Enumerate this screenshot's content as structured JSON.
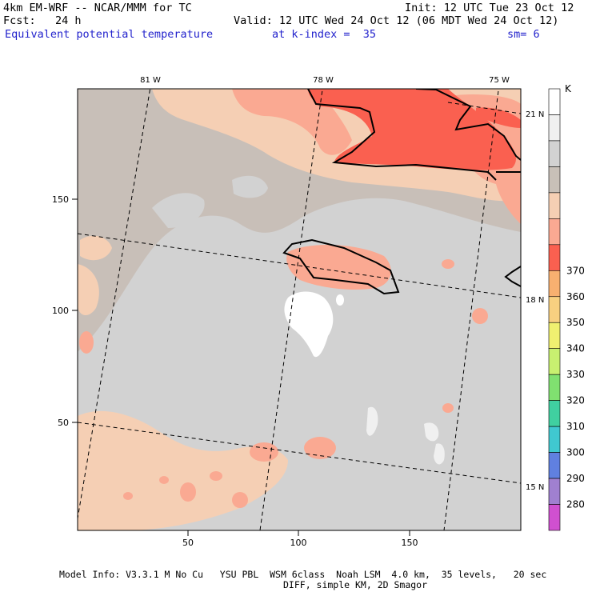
{
  "header": {
    "model_title": "4km EM-WRF -- NCAR/MMM for TC",
    "init": "Init: 12 UTC Tue 23 Oct 12",
    "forecast": "Fcst:   24 h",
    "valid": "Valid: 12 UTC Wed 24 Oct 12 (06 MDT Wed 24 Oct 12)",
    "field": "Equivalent potential temperature",
    "level": "at k-index =  35",
    "smoothing": "sm= 6"
  },
  "axes": {
    "x_ticks": [
      "50",
      "100",
      "150"
    ],
    "y_ticks": [
      "50",
      "100",
      "150"
    ],
    "lon_labels": [
      "81 W",
      "78 W",
      "75 W"
    ],
    "lat_labels": [
      "21 N",
      "18 N",
      "15 N"
    ]
  },
  "colorbar": {
    "unit": "K",
    "levels": [
      "280",
      "290",
      "300",
      "310",
      "320",
      "330",
      "340",
      "350",
      "360",
      "370"
    ],
    "colors": [
      "#ffffff",
      "#f0f0f0",
      "#d2d2d2",
      "#c8c0b8",
      "#f5cfb4",
      "#faa992",
      "#fa6050",
      "#f8b070",
      "#f8d080",
      "#f0f070",
      "#c8f070",
      "#80e070",
      "#40d0a0",
      "#40c8d0",
      "#6080e0",
      "#a080d0",
      "#d050d0"
    ]
  },
  "footer": {
    "line1": "Model Info: V3.3.1 M No Cu   YSU PBL  WSM 6class  Noah LSM  4.0 km,  35 levels,   20 sec",
    "line2": "DIFF, simple KM, 2D Smagor"
  }
}
